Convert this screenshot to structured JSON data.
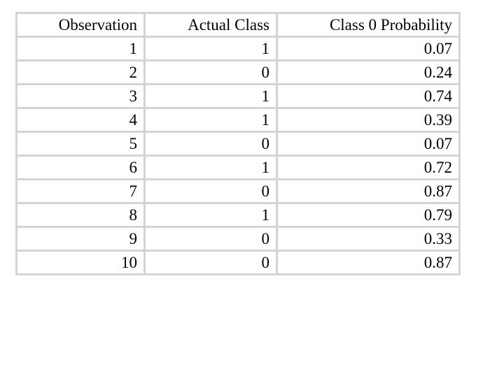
{
  "chart_data": {
    "type": "table",
    "title": "",
    "columns": [
      "Observation",
      "Actual Class",
      "Class 0 Probability"
    ],
    "rows": [
      [
        "1",
        "1",
        "0.07"
      ],
      [
        "2",
        "0",
        "0.24"
      ],
      [
        "3",
        "1",
        "0.74"
      ],
      [
        "4",
        "1",
        "0.39"
      ],
      [
        "5",
        "0",
        "0.07"
      ],
      [
        "6",
        "1",
        "0.72"
      ],
      [
        "7",
        "0",
        "0.87"
      ],
      [
        "8",
        "1",
        "0.79"
      ],
      [
        "9",
        "0",
        "0.33"
      ],
      [
        "10",
        "0",
        "0.87"
      ]
    ],
    "layout": {
      "header_row": true,
      "alignment": "right",
      "grid": true
    }
  },
  "colors": {
    "border": "#d4d4da",
    "text": "#000000",
    "background": "#ffffff"
  }
}
